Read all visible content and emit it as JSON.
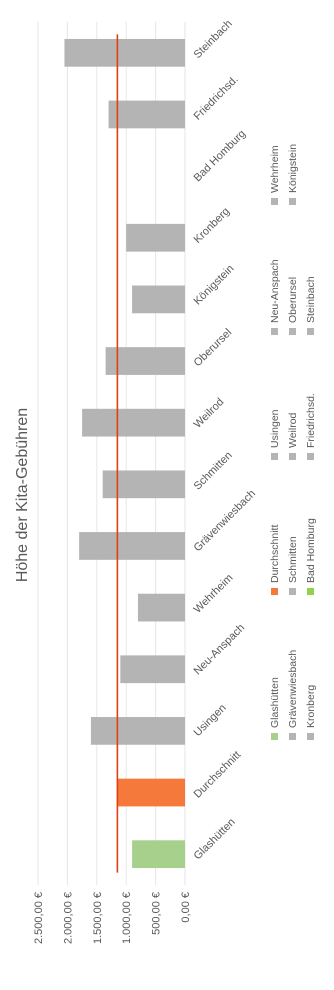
{
  "chart_data": {
    "type": "bar",
    "title": "Höhe der Kita-Gebühren",
    "categories": [
      "Glashütten",
      "Durchschnitt",
      "Usingen",
      "Neu-Anspach",
      "Wehrheim",
      "Grävenwiesbach",
      "Schmitten",
      "Weilrod",
      "Oberursel",
      "Königstein",
      "Kronberg",
      "Bad Homburg",
      "Friedrichsd.",
      "Steinbach"
    ],
    "values": [
      900,
      1150,
      1600,
      1100,
      800,
      1800,
      1400,
      1750,
      1350,
      900,
      1000,
      0,
      1300,
      2050
    ],
    "average_line": 1150,
    "ylim": [
      0,
      2500
    ],
    "yticks": [
      "0,00 €",
      "500,00 €",
      "1.000,00 €",
      "1.500,00 €",
      "2.000,00 €",
      "2.500,00 €"
    ],
    "grid": true,
    "legend_position": "bottom",
    "legend": [
      "Glashütten",
      "Durchschnitt",
      "Usingen",
      "Neu-Anspach",
      "Wehrheim",
      "Grävenwiesbach",
      "Schmitten",
      "Weilrod",
      "Oberursel",
      "Königstein",
      "Kronberg",
      "Bad Homburg",
      "Friedrichsd.",
      "Steinbach"
    ],
    "colors": {
      "Glashütten": "#a8d08d",
      "Durchschnitt": "#f4793a",
      "default": "#b4b4b4",
      "Bad Homburg": "#92d050",
      "average_line": "#e04010",
      "grid": "#e6e6e6",
      "text": "#595959"
    }
  }
}
